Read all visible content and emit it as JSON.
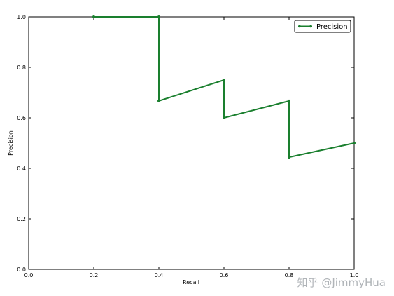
{
  "chart_data": {
    "type": "line",
    "title": "",
    "xlabel": "Recall",
    "ylabel": "Precision",
    "xlim": [
      0.0,
      1.0
    ],
    "ylim": [
      0.0,
      1.0
    ],
    "xticks": [
      "0.0",
      "0.2",
      "0.4",
      "0.6",
      "0.8",
      "1.0"
    ],
    "yticks": [
      "0.0",
      "0.2",
      "0.4",
      "0.6",
      "0.8",
      "1.0"
    ],
    "grid": false,
    "legend": "top-right",
    "series": [
      {
        "name": "Precision",
        "color": "#1a7f2e",
        "marker": "dot",
        "x": [
          0.2,
          0.4,
          0.4,
          0.6,
          0.6,
          0.8,
          0.8,
          0.8,
          0.8,
          1.0
        ],
        "y": [
          1.0,
          1.0,
          0.667,
          0.75,
          0.6,
          0.667,
          0.571,
          0.5,
          0.444,
          0.5
        ]
      }
    ]
  },
  "watermark": "知乎 @JimmyHua"
}
